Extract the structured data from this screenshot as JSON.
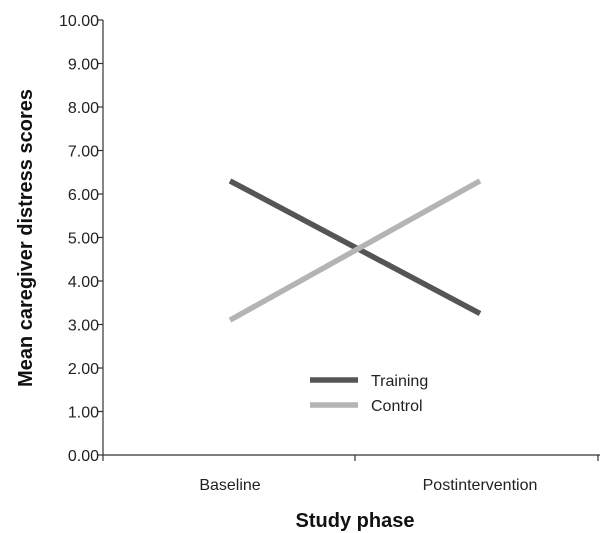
{
  "chart_data": {
    "type": "line",
    "title": "",
    "xlabel": "Study phase",
    "ylabel": "Mean caregiver distress scores",
    "categories": [
      "Baseline",
      "Postintervention"
    ],
    "ylim": [
      0,
      10
    ],
    "yticks": [
      "0.00",
      "1.00",
      "2.00",
      "3.00",
      "4.00",
      "5.00",
      "6.00",
      "7.00",
      "8.00",
      "9.00",
      "10.00"
    ],
    "grid": false,
    "legend_position": "bottom-center",
    "series": [
      {
        "name": "Training",
        "values": [
          6.3,
          3.25
        ],
        "color": "#555555"
      },
      {
        "name": "Control",
        "values": [
          3.1,
          6.3
        ],
        "color": "#b4b4b4"
      }
    ]
  }
}
